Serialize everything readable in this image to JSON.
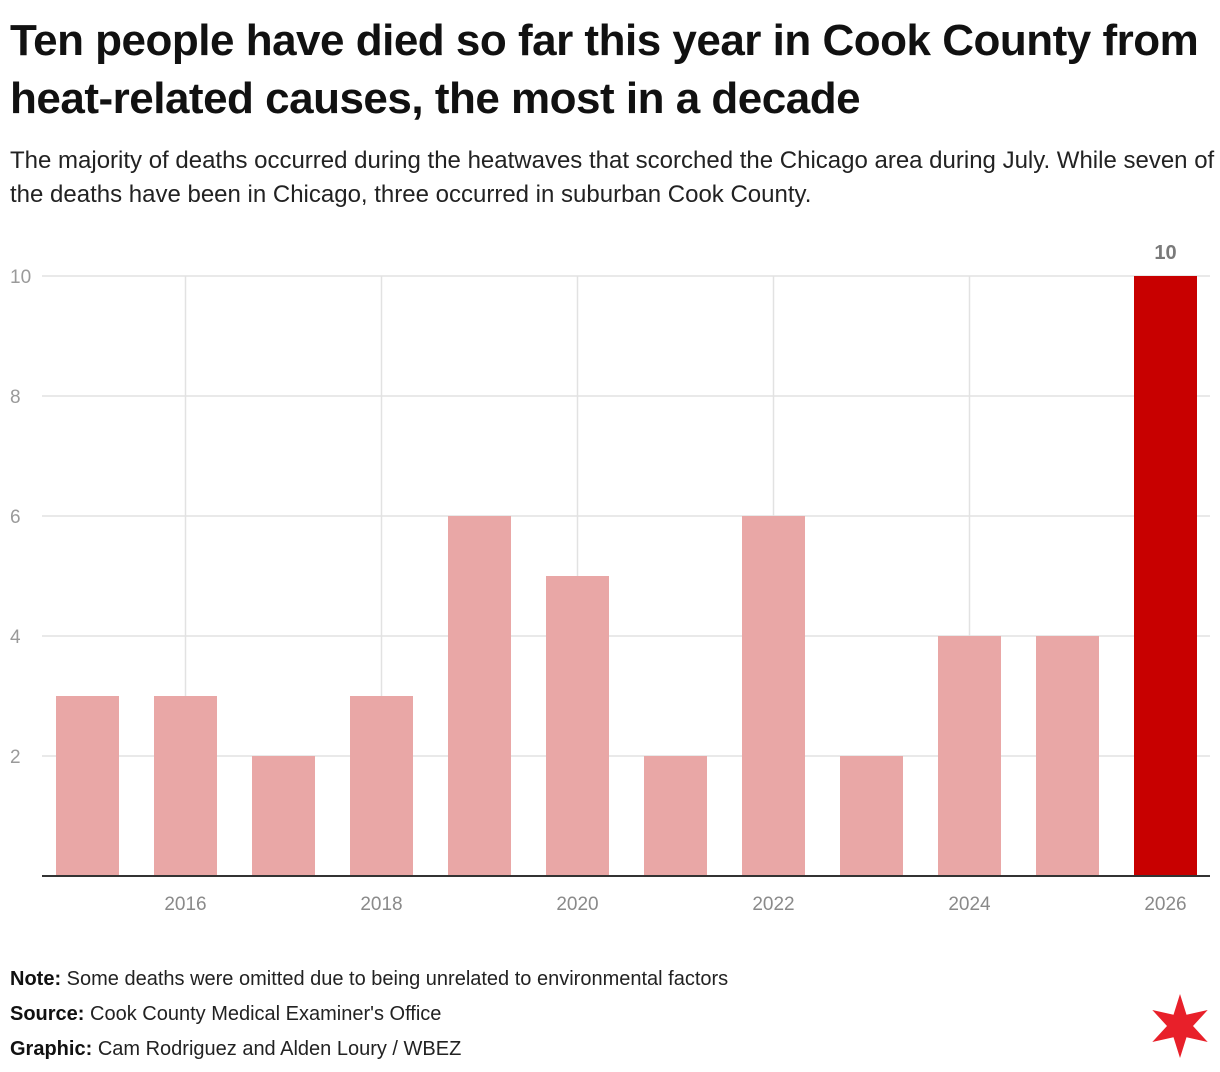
{
  "header": {
    "title": "Ten people have died so far this year in Cook County from heat-related causes, the most in a decade",
    "subtitle": "The majority of deaths occurred during the heatwaves that scorched the Chicago area during July. While seven of the deaths have been in Chicago, three occurred in suburban Cook County."
  },
  "chart_data": {
    "type": "bar",
    "categories": [
      "2015",
      "2016",
      "2017",
      "2018",
      "2019",
      "2020",
      "2021",
      "2022",
      "2023",
      "2024",
      "2025",
      "2026"
    ],
    "values": [
      3,
      3,
      2,
      3,
      6,
      5,
      2,
      6,
      2,
      4,
      4,
      10
    ],
    "x_tick_labels": [
      "2016",
      "2018",
      "2020",
      "2022",
      "2024",
      "2026"
    ],
    "y_ticks": [
      2,
      4,
      6,
      8,
      10
    ],
    "ylim": [
      0,
      10
    ],
    "grid": true,
    "highlight_category": "2026",
    "data_labels": [
      {
        "category": "2026",
        "text": "10"
      }
    ],
    "colors": {
      "bar": "#e9a7a6",
      "highlight": "#c80000",
      "grid": "#e2e2e2",
      "axis": "#333333"
    }
  },
  "footer": {
    "note_label": "Note:",
    "note_text": "Some deaths were omitted due to being unrelated to environmental factors",
    "source_label": "Source:",
    "source_text": "Cook County Medical Examiner's Office",
    "graphic_label": "Graphic:",
    "graphic_text": "Cam Rodriguez and Alden Loury / WBEZ",
    "logo_icon": "six-pointed-red-star-icon",
    "logo_color": "#e8202a"
  }
}
